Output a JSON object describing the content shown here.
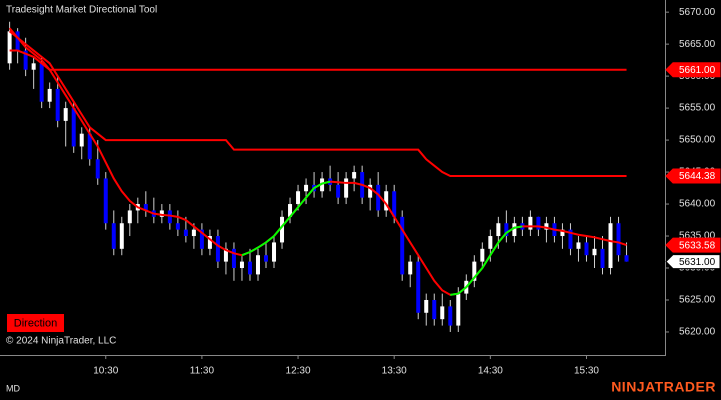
{
  "chart_data": {
    "type": "candlestick",
    "title": "Tradesight Market Directional Tool",
    "button": "Direction",
    "copyright": "© 2024 NinjaTrader, LLC",
    "instrument": "MD",
    "brand": "NINJATRADER",
    "up_color": "#ffffff",
    "down_color": "#0000ff",
    "x": [
      0,
      5,
      10,
      15,
      20,
      25,
      30,
      35,
      40,
      45,
      50,
      55,
      60,
      65,
      70,
      75,
      80,
      85,
      90,
      95,
      100,
      105,
      110,
      115,
      120,
      125,
      130,
      135,
      140,
      145,
      150,
      155,
      160,
      165,
      170,
      175,
      180,
      185,
      190,
      195,
      200,
      205,
      210,
      215,
      220,
      225,
      230,
      235,
      240,
      245,
      250,
      255,
      260,
      265,
      270,
      275,
      280,
      285,
      290,
      295,
      300,
      305,
      310,
      315,
      320,
      325,
      330,
      335,
      340,
      345,
      350,
      355,
      360,
      365,
      370,
      375,
      380,
      385
    ],
    "open": [
      5662,
      5667,
      5664,
      5661,
      5662,
      5656,
      5658,
      5653,
      5655,
      5649,
      5651,
      5647,
      5644,
      5637,
      5633,
      5637,
      5639,
      5640,
      5639,
      5638,
      5639,
      5637,
      5636,
      5635,
      5636,
      5633,
      5635,
      5631,
      5633,
      5630,
      5631,
      5629,
      5632,
      5631,
      5634,
      5638,
      5640,
      5642,
      5643,
      5642,
      5644,
      5643,
      5641,
      5644,
      5645,
      5641,
      5643,
      5639,
      5642,
      5638,
      5629,
      5631,
      5623,
      5625,
      5622,
      5624,
      5621,
      5626,
      5628,
      5631,
      5633,
      5635,
      5637,
      5635,
      5637,
      5636,
      5638,
      5636,
      5637,
      5635,
      5636,
      5633,
      5634,
      5632,
      5633,
      5630,
      5637,
      5632
    ],
    "high": [
      5668.5,
      5667.5,
      5666,
      5663,
      5663,
      5659,
      5660,
      5656,
      5656,
      5652,
      5652,
      5650,
      5645,
      5639,
      5638,
      5640,
      5641,
      5642,
      5641,
      5640,
      5640,
      5639,
      5638,
      5637,
      5637,
      5636,
      5636,
      5634,
      5634,
      5632,
      5633,
      5633,
      5634,
      5635,
      5639,
      5641,
      5643,
      5644,
      5645,
      5645,
      5646,
      5645,
      5645,
      5646,
      5646,
      5644,
      5645,
      5643,
      5643,
      5639,
      5632,
      5632,
      5626,
      5626,
      5626,
      5625,
      5627,
      5629,
      5632,
      5634,
      5636,
      5638,
      5639,
      5638,
      5638,
      5639,
      5638,
      5638,
      5638,
      5637,
      5637,
      5635,
      5635,
      5635,
      5635,
      5638,
      5638,
      5634
    ],
    "low": [
      5661,
      5662,
      5660,
      5658,
      5655,
      5655,
      5652,
      5649,
      5648,
      5647,
      5646,
      5643,
      5636,
      5632,
      5632,
      5635,
      5637,
      5638,
      5637,
      5637,
      5636,
      5635,
      5634,
      5633,
      5632,
      5632,
      5630,
      5629,
      5628,
      5628,
      5628,
      5628,
      5630,
      5630,
      5633,
      5637,
      5639,
      5640,
      5641,
      5641,
      5642,
      5640,
      5640,
      5642,
      5640,
      5639,
      5638,
      5638,
      5637,
      5628,
      5627,
      5622,
      5621,
      5621,
      5621,
      5620,
      5620,
      5625,
      5627,
      5630,
      5631,
      5633,
      5634,
      5634,
      5635,
      5635,
      5635,
      5634,
      5634,
      5633,
      5632,
      5631,
      5631,
      5630,
      5629,
      5629,
      5631,
      5631
    ],
    "close": [
      5667,
      5664,
      5661,
      5662,
      5656,
      5658,
      5653,
      5655,
      5649,
      5651,
      5647,
      5644,
      5637,
      5633,
      5637,
      5639,
      5640,
      5639,
      5638,
      5639,
      5637,
      5636,
      5635,
      5636,
      5633,
      5635,
      5631,
      5633,
      5630,
      5631,
      5629,
      5632,
      5631,
      5634,
      5638,
      5640,
      5642,
      5643,
      5642,
      5644,
      5643,
      5641,
      5644,
      5645,
      5641,
      5643,
      5639,
      5642,
      5638,
      5629,
      5631,
      5623,
      5625,
      5622,
      5624,
      5621,
      5626,
      5628,
      5631,
      5633,
      5635,
      5637,
      5635,
      5637,
      5636,
      5638,
      5636,
      5637,
      5635,
      5636,
      5633,
      5634,
      5632,
      5633,
      5630,
      5637,
      5632,
      5631
    ],
    "lines": [
      {
        "color": "#ff0000",
        "values": [
          5664,
          5664,
          5663.5,
          5663,
          5662,
          5661,
          5661,
          5661,
          5661,
          5661,
          5661,
          5661,
          5661,
          5661,
          5661,
          5661,
          5661,
          5661,
          5661,
          5661,
          5661,
          5661,
          5661,
          5661,
          5661,
          5661,
          5661,
          5661,
          5661,
          5661,
          5661,
          5661,
          5661,
          5661,
          5661,
          5661,
          5661,
          5661,
          5661,
          5661,
          5661,
          5661,
          5661,
          5661,
          5661,
          5661,
          5661,
          5661,
          5661,
          5661,
          5661,
          5661,
          5661,
          5661,
          5661,
          5661,
          5661,
          5661,
          5661,
          5661,
          5661,
          5661,
          5661,
          5661,
          5661,
          5661,
          5661,
          5661,
          5661,
          5661,
          5661,
          5661,
          5661,
          5661,
          5661,
          5661,
          5661,
          5661
        ]
      },
      {
        "color": "#ff0000",
        "values": [
          5667,
          5666,
          5665,
          5664,
          5663,
          5662,
          5660,
          5658,
          5656,
          5654,
          5652,
          5651,
          5650,
          5650,
          5650,
          5650,
          5650,
          5650,
          5650,
          5650,
          5650,
          5650,
          5650,
          5650,
          5650,
          5650,
          5650,
          5650,
          5648.5,
          5648.5,
          5648.5,
          5648.5,
          5648.5,
          5648.5,
          5648.5,
          5648.5,
          5648.5,
          5648.5,
          5648.5,
          5648.5,
          5648.5,
          5648.5,
          5648.5,
          5648.5,
          5648.5,
          5648.5,
          5648.5,
          5648.5,
          5648.5,
          5648.5,
          5648.5,
          5648.5,
          5647,
          5646,
          5645,
          5644.38,
          5644.38,
          5644.38,
          5644.38,
          5644.38,
          5644.38,
          5644.38,
          5644.38,
          5644.38,
          5644.38,
          5644.38,
          5644.38,
          5644.38,
          5644.38,
          5644.38,
          5644.38,
          5644.38,
          5644.38,
          5644.38,
          5644.38,
          5644.38,
          5644.38,
          5644.38
        ]
      },
      {
        "color": "#ff0000",
        "values": [
          5667.5,
          5666,
          5664.5,
          5663.5,
          5662.5,
          5661,
          5659,
          5657,
          5655,
          5653,
          5651,
          5649,
          5646.5,
          5644,
          5642,
          5640.5,
          5639.5,
          5639,
          5638.5,
          5638.3,
          5638.2,
          5638,
          5637.5,
          5636.5,
          5635.5,
          5634.5,
          5633.5,
          5632.8,
          5632.3,
          5632,
          5632.5,
          5633.2,
          5634,
          5635,
          5636.5,
          5638,
          5639.5,
          5641,
          5642.5,
          5643.2,
          5643.5,
          5643.4,
          5643.3,
          5643.3,
          5643,
          5642.5,
          5641.5,
          5640,
          5638,
          5636,
          5634,
          5632,
          5630,
          5628,
          5626.5,
          5625.8,
          5626,
          5627,
          5628.5,
          5630,
          5632,
          5634,
          5635.5,
          5636.3,
          5636.5,
          5636.5,
          5636.5,
          5636.3,
          5636,
          5635.8,
          5635.5,
          5635.2,
          5635,
          5634.8,
          5634.5,
          5634.2,
          5634,
          5633.58
        ]
      },
      {
        "color": "#00ff00",
        "values": [
          null,
          null,
          null,
          null,
          null,
          null,
          null,
          null,
          null,
          null,
          null,
          null,
          null,
          null,
          null,
          null,
          null,
          null,
          null,
          null,
          null,
          null,
          null,
          null,
          null,
          null,
          null,
          null,
          null,
          5632,
          5632.5,
          5633.2,
          5634,
          5635,
          5636.5,
          5638,
          5639.5,
          5641,
          5642.5,
          5643.2,
          5643.5,
          null,
          null,
          null,
          null,
          null,
          null,
          null,
          null,
          null,
          null,
          null,
          null,
          null,
          null,
          5625.8,
          5626,
          5627,
          5628.5,
          5630,
          5632,
          5634,
          5635.5,
          5636.3,
          5636.5,
          null,
          null,
          null,
          null,
          null,
          null,
          null,
          null,
          null,
          null,
          null,
          null,
          null
        ]
      }
    ],
    "price_markers": {
      "values": [
        5661,
        5644.38,
        5633.58,
        5631
      ],
      "value_labels": [
        "5661.00",
        "5644.38",
        "5633.58",
        "5631.00"
      ],
      "colors": [
        "#ff0000",
        "#ff0000",
        "#ff0000",
        "#ffffff"
      ]
    },
    "xlim": [
      -6,
      409
    ],
    "xticks": [
      {
        "value": 60,
        "label": "10:30"
      },
      {
        "value": 120,
        "label": "11:30"
      },
      {
        "value": 180,
        "label": "12:30"
      },
      {
        "value": 240,
        "label": "13:30"
      },
      {
        "value": 300,
        "label": "14:30"
      },
      {
        "value": 360,
        "label": "15:30"
      }
    ],
    "ylim": [
      5616.4,
      5671.9
    ],
    "yticks": [
      {
        "value": 5620,
        "label": "5620.00"
      },
      {
        "value": 5625,
        "label": "5625.00"
      },
      {
        "value": 5630,
        "label": "5630.00"
      },
      {
        "value": 5635,
        "label": "5635.00"
      },
      {
        "value": 5640,
        "label": "5640.00"
      },
      {
        "value": 5645,
        "label": "5645.00"
      },
      {
        "value": 5650,
        "label": "5650.00"
      },
      {
        "value": 5655,
        "label": "5655.00"
      },
      {
        "value": 5660,
        "label": "5660.00"
      },
      {
        "value": 5665,
        "label": "5665.00"
      },
      {
        "value": 5670,
        "label": "5670.00"
      }
    ]
  }
}
